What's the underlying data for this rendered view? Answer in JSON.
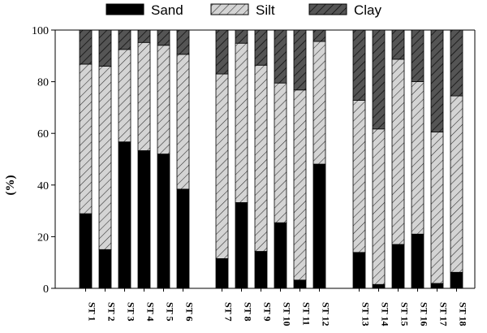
{
  "chart_data": {
    "type": "bar",
    "stacked": true,
    "ylabel": "(%)",
    "ylim": [
      0,
      100
    ],
    "yticks": [
      0,
      20,
      40,
      60,
      80,
      100
    ],
    "legend_position": "top",
    "grid": false,
    "categories": [
      "ST 1",
      "ST 2",
      "ST 3",
      "ST 4",
      "ST 5",
      "ST 6",
      "ST 7",
      "ST 8",
      "ST 9",
      "ST 10",
      "ST 11",
      "ST 12",
      "ST 13",
      "ST 14",
      "ST 15",
      "ST 16",
      "ST 17",
      "ST 18"
    ],
    "groups": [
      6,
      6,
      6
    ],
    "series": [
      {
        "name": "Sand",
        "fill": "solid",
        "color": "#000000",
        "values": [
          28.9,
          15.0,
          56.7,
          53.3,
          52.0,
          38.4,
          11.5,
          33.2,
          14.3,
          25.4,
          3.2,
          48.1,
          13.9,
          1.5,
          17.0,
          21.0,
          1.9,
          6.2
        ]
      },
      {
        "name": "Silt",
        "fill": "light-hatch",
        "color": "#d4d4d4",
        "values": [
          57.9,
          71.0,
          35.8,
          41.9,
          42.1,
          52.2,
          71.5,
          61.7,
          72.1,
          54.1,
          73.6,
          47.5,
          58.9,
          60.2,
          71.7,
          59.0,
          58.6,
          68.3
        ]
      },
      {
        "name": "Clay",
        "fill": "dark-hatch",
        "color": "#555555",
        "values": [
          13.2,
          14.0,
          7.5,
          4.8,
          5.9,
          9.4,
          17.0,
          5.1,
          13.6,
          20.5,
          23.2,
          4.4,
          27.2,
          38.3,
          11.3,
          20.0,
          39.5,
          25.5
        ]
      }
    ]
  }
}
